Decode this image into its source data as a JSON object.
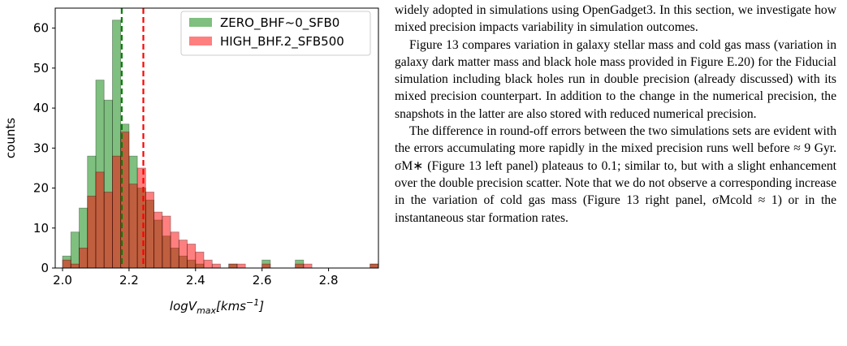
{
  "chart_data": {
    "type": "histogram",
    "xlabel": {
      "main": "logV",
      "sub": "max",
      "open": "[kms",
      "sup": "−1",
      "close": "]"
    },
    "ylabel": "counts",
    "bins": [
      2.0,
      2.025,
      2.05,
      2.075,
      2.1,
      2.125,
      2.15,
      2.175,
      2.2,
      2.225,
      2.25,
      2.275,
      2.3,
      2.325,
      2.35,
      2.375,
      2.4,
      2.425,
      2.45,
      2.475,
      2.5,
      2.525,
      2.55,
      2.575,
      2.6,
      2.625,
      2.65,
      2.675,
      2.7,
      2.725,
      2.75,
      2.775,
      2.8,
      2.825,
      2.85,
      2.875,
      2.9,
      2.925,
      2.95
    ],
    "series": [
      {
        "name": "ZERO_BHF~0_SFB0",
        "color": "#008000",
        "line_color": "#008000",
        "mean": 2.178,
        "values": [
          3,
          9,
          15,
          28,
          47,
          42,
          62,
          36,
          28,
          20,
          17,
          12,
          8,
          5,
          3,
          2,
          1,
          0,
          0,
          0,
          1,
          0,
          0,
          0,
          2,
          0,
          0,
          0,
          2,
          0,
          0,
          0,
          0,
          0,
          0,
          0,
          0,
          1
        ]
      },
      {
        "name": "HIGH_BHF.2_SFB500",
        "color": "#ff0000",
        "line_color": "#ff0000",
        "mean": 2.243,
        "values": [
          2,
          1,
          5,
          18,
          24,
          19,
          28,
          34,
          21,
          25,
          19,
          14,
          13,
          9,
          7,
          6,
          4,
          2,
          1,
          0,
          1,
          1,
          0,
          0,
          1,
          0,
          0,
          0,
          1,
          1,
          0,
          0,
          0,
          0,
          0,
          0,
          0,
          1
        ]
      }
    ],
    "xlim": [
      1.978,
      2.95
    ],
    "ylim": [
      0,
      65
    ],
    "xticks": [
      {
        "value": 2.0,
        "label": "2.0"
      },
      {
        "value": 2.2,
        "label": "2.2"
      },
      {
        "value": 2.4,
        "label": "2.4"
      },
      {
        "value": 2.6,
        "label": "2.6"
      },
      {
        "value": 2.8,
        "label": "2.8"
      }
    ],
    "yticks": [
      0,
      10,
      20,
      30,
      40,
      50,
      60
    ],
    "legend": "upper right"
  },
  "text": {
    "paragraphs": [
      "widely adopted in simulations using OpenGadget3. In this section, we investigate how mixed precision impacts variability in simulation outcomes.",
      "Figure 13 compares variation in galaxy stellar mass and cold gas mass (variation in galaxy dark matter mass and black hole mass provided in Figure E.20) for the Fiducial simulation including black holes run in double precision (already discussed) with its mixed precision counterpart. In addition to the change in the numerical precision, the snapshots in the latter are also stored with reduced numerical precision.",
      "The difference in round-off errors between the two simulations sets are evident with the errors accumulating more rapidly in the mixed precision runs well before ≈ 9 Gyr. σM∗ (Figure 13 left panel) plateaus to 0.1; similar to, but with a slight enhancement over the double precision scatter. Note that we do not observe a corresponding increase in the variation of cold gas mass (Figure 13 right panel, σMcold ≈ 1) or in the instantaneous star formation rates."
    ]
  }
}
